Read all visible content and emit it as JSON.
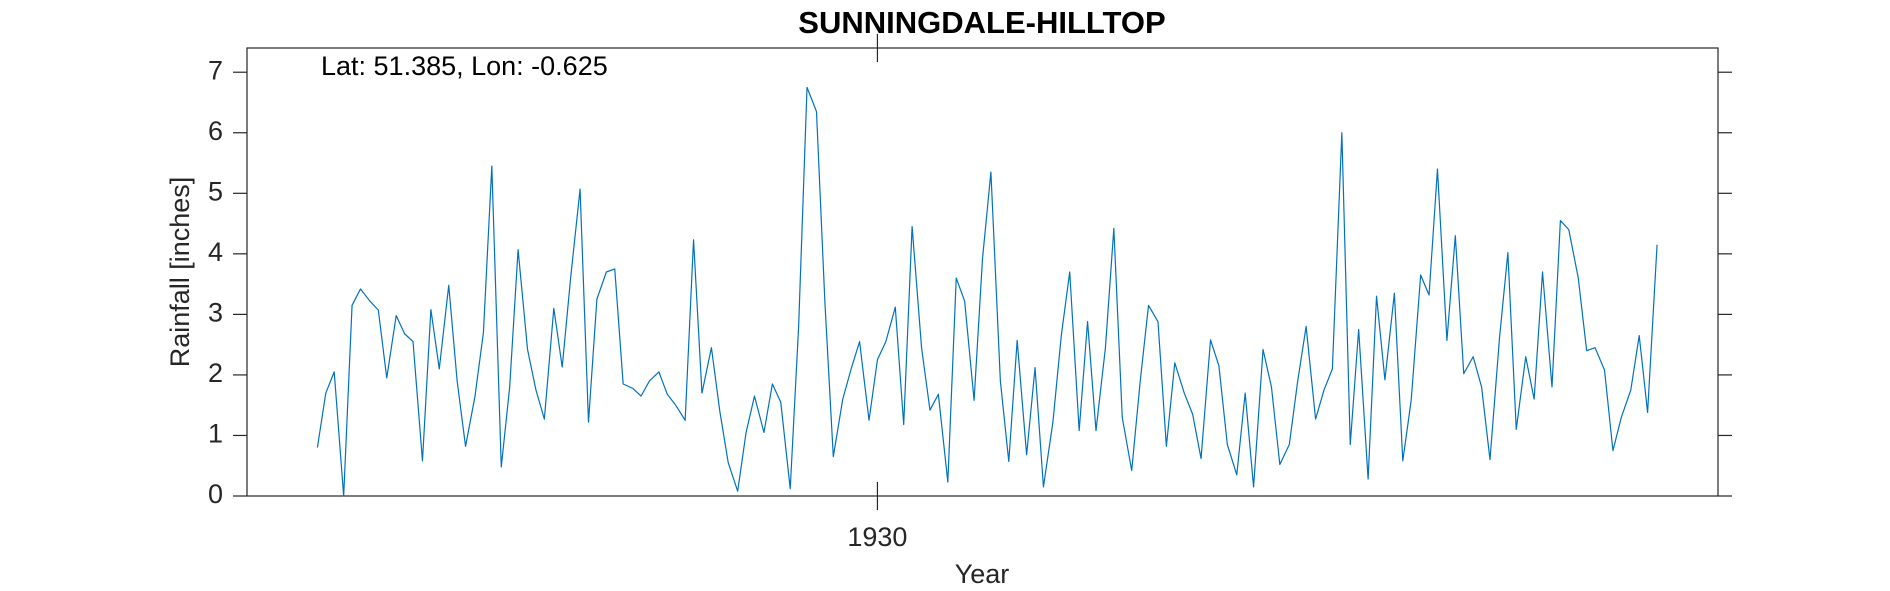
{
  "chart_data": {
    "type": "line",
    "title": "SUNNINGDALE-HILLTOP",
    "xlabel": "Year",
    "ylabel": "Rainfall [inches]",
    "annotation": "Lat: 51.385, Lon: -0.625",
    "xlim": [
      1924,
      1938
    ],
    "xticks": [
      1930
    ],
    "ylim": [
      0,
      7.4
    ],
    "yticks": [
      0,
      1,
      2,
      3,
      4,
      5,
      6,
      7
    ],
    "grid": false,
    "series": [
      {
        "name": "Rainfall",
        "color": "#0072bd",
        "x": [
          1924.67,
          1924.75,
          1924.83,
          1924.92,
          1925.0,
          1925.08,
          1925.17,
          1925.25,
          1925.33,
          1925.42,
          1925.5,
          1925.58,
          1925.67,
          1925.75,
          1925.83,
          1925.92,
          1926.0,
          1926.08,
          1926.17,
          1926.25,
          1926.33,
          1926.42,
          1926.5,
          1926.58,
          1926.67,
          1926.75,
          1926.83,
          1926.92,
          1927.0,
          1927.08,
          1927.17,
          1927.25,
          1927.33,
          1927.42,
          1927.5,
          1927.58,
          1927.67,
          1927.75,
          1927.83,
          1927.92,
          1928.0,
          1928.08,
          1928.17,
          1928.25,
          1928.33,
          1928.42,
          1928.5,
          1928.58,
          1928.67,
          1928.75,
          1928.83,
          1928.92,
          1929.0,
          1929.08,
          1929.17,
          1929.25,
          1929.33,
          1929.42,
          1929.5,
          1929.58,
          1929.67,
          1929.75,
          1929.83,
          1929.92,
          1930.0,
          1930.08,
          1930.17,
          1930.25,
          1930.33,
          1930.42,
          1930.5,
          1930.58,
          1930.67,
          1930.75,
          1930.83,
          1930.92,
          1931.0,
          1931.08,
          1931.17,
          1931.25,
          1931.33,
          1931.42,
          1931.5,
          1931.58,
          1931.67,
          1931.75,
          1931.83,
          1931.92,
          1932.0,
          1932.08,
          1932.17,
          1932.25,
          1932.33,
          1932.42,
          1932.5,
          1932.58,
          1932.67,
          1932.75,
          1932.83,
          1932.92,
          1933.0,
          1933.08,
          1933.17,
          1933.25,
          1933.33,
          1933.42,
          1933.5,
          1933.58,
          1933.67,
          1933.75,
          1933.83,
          1933.92,
          1934.0,
          1934.08,
          1934.17,
          1934.25,
          1934.33,
          1934.42,
          1934.5,
          1934.58,
          1934.67,
          1934.75,
          1934.83,
          1934.92,
          1935.0,
          1935.08,
          1935.17,
          1935.25,
          1935.33,
          1935.42,
          1935.5,
          1935.58,
          1935.67,
          1935.75,
          1935.83,
          1935.92,
          1936.0,
          1936.08,
          1936.17,
          1936.25,
          1936.33,
          1936.42,
          1936.5,
          1936.58,
          1936.67,
          1936.75,
          1936.83,
          1936.92,
          1937.0,
          1937.08,
          1937.17,
          1937.25,
          1937.33,
          1937.42
        ],
        "values": [
          0.8,
          1.7,
          2.05,
          0,
          3.15,
          3.42,
          3.22,
          3.07,
          1.95,
          2.98,
          2.68,
          2.55,
          0.58,
          3.08,
          2.1,
          3.48,
          1.9,
          0.82,
          1.65,
          2.7,
          5.45,
          0.48,
          1.8,
          4.07,
          2.42,
          1.75,
          1.27,
          3.1,
          2.13,
          3.6,
          5.07,
          1.22,
          3.25,
          3.7,
          3.75,
          1.85,
          1.78,
          1.65,
          1.9,
          2.05,
          1.68,
          1.5,
          1.25,
          4.23,
          1.7,
          2.45,
          1.4,
          0.55,
          0.08,
          1.05,
          1.65,
          1.05,
          1.85,
          1.55,
          0.12,
          2.8,
          6.75,
          6.35,
          3.2,
          0.65,
          1.6,
          2.1,
          2.55,
          1.25,
          2.25,
          2.55,
          3.12,
          1.18,
          4.45,
          2.45,
          1.42,
          1.68,
          0.23,
          3.6,
          3.22,
          1.58,
          3.92,
          5.35,
          1.9,
          0.57,
          2.57,
          0.68,
          2.12,
          0.15,
          1.22,
          2.65,
          3.7,
          1.08,
          2.88,
          1.08,
          2.45,
          4.42,
          1.3,
          0.42,
          1.88,
          3.15,
          2.88,
          0.82,
          2.2,
          1.7,
          1.35,
          0.62,
          2.58,
          2.15,
          0.85,
          0.35,
          1.7,
          0.15,
          2.42,
          1.8,
          0.52,
          0.85,
          1.9,
          2.8,
          1.27,
          1.75,
          2.1,
          6.0,
          0.85,
          2.75,
          0.28,
          3.3,
          1.92,
          3.35,
          0.58,
          1.58,
          3.65,
          3.32,
          5.4,
          2.57,
          4.3,
          2.02,
          2.3,
          1.8,
          0.6,
          2.6,
          4.02,
          1.1,
          2.3,
          1.6,
          3.7,
          1.8,
          4.55,
          4.4,
          3.6,
          2.4,
          2.45,
          2.08,
          0.75,
          1.3,
          1.75,
          2.65,
          1.38,
          4.15
        ]
      }
    ]
  }
}
